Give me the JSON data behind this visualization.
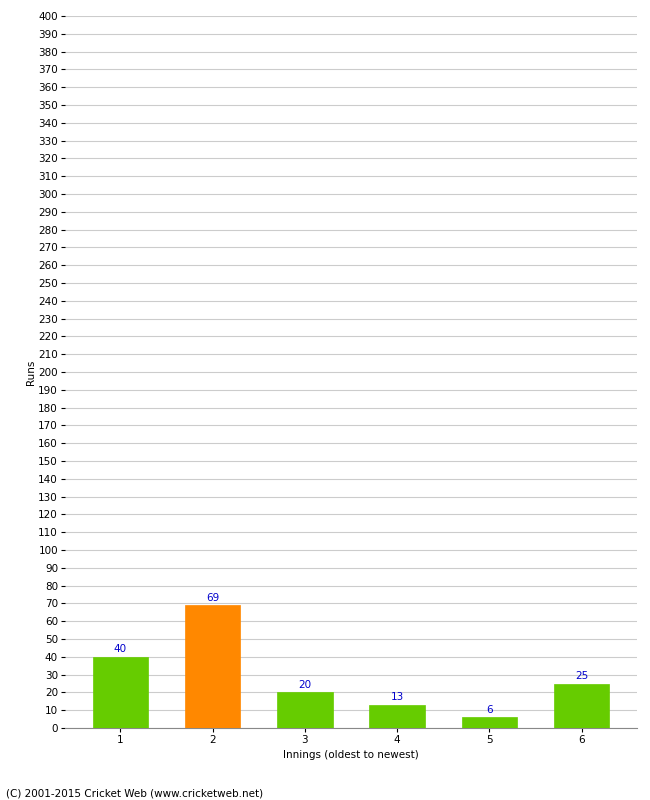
{
  "categories": [
    "1",
    "2",
    "3",
    "4",
    "5",
    "6"
  ],
  "values": [
    40,
    69,
    20,
    13,
    6,
    25
  ],
  "bar_colors": [
    "#66cc00",
    "#ff8800",
    "#66cc00",
    "#66cc00",
    "#66cc00",
    "#66cc00"
  ],
  "xlabel": "Innings (oldest to newest)",
  "ylabel": "Runs",
  "ylim": [
    0,
    400
  ],
  "ytick_step": 10,
  "label_color": "#0000cc",
  "grid_color": "#cccccc",
  "bg_color": "#ffffff",
  "footer": "(C) 2001-2015 Cricket Web (www.cricketweb.net)",
  "label_fontsize": 7.5,
  "axis_fontsize": 7.5,
  "ylabel_fontsize": 7.5,
  "footer_fontsize": 7.5
}
